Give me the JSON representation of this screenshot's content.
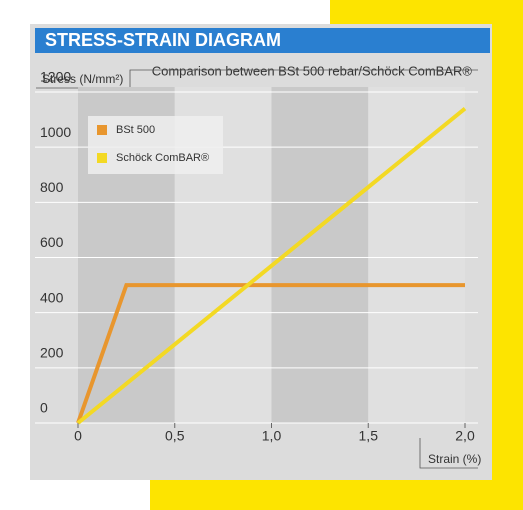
{
  "chart_data": {
    "type": "line",
    "title": "STRESS-STRAIN DIAGRAM",
    "subtitle": "Comparison between BSt 500 rebar/Schöck ComBAR®",
    "y_label": "Stress (N/mm²)",
    "x_label": "Strain (%)",
    "series": [
      {
        "name": "BSt 500",
        "color": "#e8962e",
        "x": [
          0,
          0.25,
          2.0
        ],
        "values": [
          0,
          500,
          500
        ]
      },
      {
        "name": "Schöck ComBAR®",
        "color": "#f3d924",
        "x": [
          0,
          2.0
        ],
        "values": [
          0,
          1140
        ]
      }
    ],
    "xlim": [
      0,
      2.0
    ],
    "ylim": [
      0,
      1200
    ],
    "xticks": [
      0,
      {
        "value": 0.5,
        "label": "0,5"
      },
      {
        "value": 1.0,
        "label": "1,0"
      },
      {
        "value": 1.5,
        "label": "1,5"
      },
      {
        "value": 2.0,
        "label": "2,0"
      }
    ],
    "yticks": [
      0,
      200,
      400,
      600,
      800,
      1000,
      1200
    ],
    "grid": true,
    "legend": "upper left"
  }
}
